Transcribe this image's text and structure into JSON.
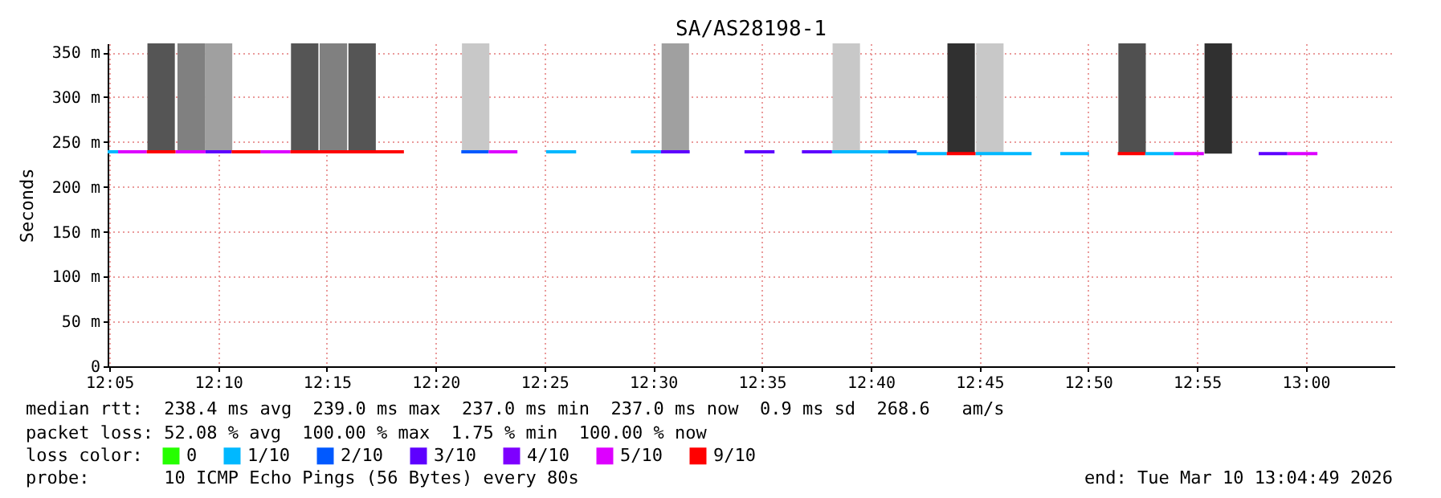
{
  "chart_data": {
    "type": "line",
    "title": "SA/AS28198-1",
    "ylabel": "Seconds",
    "legend_title": "loss color:",
    "legend": "bottom left",
    "grid": true,
    "xlim": [
      12.082,
      13.068
    ],
    "xticks": [
      {
        "value": 12.0833,
        "label": "12:05"
      },
      {
        "value": 12.1667,
        "label": "12:10"
      },
      {
        "value": 12.25,
        "label": "12:15"
      },
      {
        "value": 12.3333,
        "label": "12:20"
      },
      {
        "value": 12.4167,
        "label": "12:25"
      },
      {
        "value": 12.5,
        "label": "12:30"
      },
      {
        "value": 12.5833,
        "label": "12:35"
      },
      {
        "value": 12.6667,
        "label": "12:40"
      },
      {
        "value": 12.75,
        "label": "12:45"
      },
      {
        "value": 12.8333,
        "label": "12:50"
      },
      {
        "value": 12.9167,
        "label": "12:55"
      },
      {
        "value": 13,
        "label": "13:00"
      }
    ],
    "ylim": [
      0,
      360
    ],
    "yticks": [
      0,
      {
        "value": 50,
        "label": "50 m"
      },
      {
        "value": 100,
        "label": "100 m"
      },
      {
        "value": 150,
        "label": "150 m"
      },
      {
        "value": 200,
        "label": "200 m"
      },
      {
        "value": 250,
        "label": "250 m"
      },
      {
        "value": 300,
        "label": "300 m"
      },
      {
        "value": 350,
        "label": "350 m"
      }
    ],
    "series": [
      {
        "name": "0",
        "color": "#26ff00"
      },
      {
        "name": "1/10",
        "color": "#00b8ff",
        "x": [
          12.082,
          12.09,
          null,
          12.418,
          12.441,
          null,
          12.483,
          12.506,
          null,
          12.637,
          12.68,
          null,
          12.702,
          12.725,
          null,
          12.747,
          12.79,
          null,
          12.812,
          12.834,
          null,
          12.877,
          12.899
        ],
        "values": [
          239,
          239,
          null,
          239,
          239,
          null,
          239,
          239,
          null,
          239,
          239,
          null,
          237,
          237,
          null,
          237,
          237,
          null,
          237,
          237,
          null,
          237,
          237
        ]
      },
      {
        "name": "2/10",
        "color": "#0059ff",
        "x": [
          12.353,
          12.374,
          null,
          12.68,
          12.702
        ],
        "values": [
          239,
          239,
          null,
          239,
          239
        ]
      },
      {
        "name": "3/10",
        "color": "#5e00ff",
        "x": [
          12.157,
          12.177,
          null,
          12.506,
          12.528,
          null,
          12.57,
          12.593,
          null,
          12.614,
          12.637,
          null,
          12.964,
          12.986
        ],
        "values": [
          239,
          239,
          null,
          239,
          239,
          null,
          239,
          239,
          null,
          239,
          239,
          null,
          237,
          237
        ]
      },
      {
        "name": "4/10",
        "color": "#7e00ff"
      },
      {
        "name": "5/10",
        "color": "#dd00ff",
        "x": [
          12.09,
          12.112,
          null,
          12.134,
          12.157,
          null,
          12.199,
          12.222,
          null,
          12.374,
          12.396,
          null,
          12.899,
          12.922,
          null,
          12.986,
          13.009
        ],
        "values": [
          239,
          239,
          null,
          239,
          239,
          null,
          239,
          239,
          null,
          239,
          239,
          null,
          237,
          237,
          null,
          237,
          237
        ]
      },
      {
        "name": "9/10",
        "color": "#ff0000",
        "x": [
          12.112,
          12.134,
          null,
          12.177,
          12.199,
          null,
          12.222,
          12.309,
          null,
          12.725,
          12.747,
          null,
          12.856,
          12.877
        ],
        "values": [
          239,
          239,
          null,
          239,
          239,
          null,
          239,
          239,
          null,
          237,
          237,
          null,
          237,
          237
        ]
      },
      {
        "type": "bar",
        "x": [
          12.123,
          12.146,
          12.167,
          12.233,
          12.255,
          12.277,
          12.364,
          12.517,
          12.648,
          12.736,
          12.758,
          12.867,
          12.933
        ],
        "base": [
          239,
          239,
          239,
          239,
          239,
          239,
          239,
          239,
          239,
          237,
          237,
          237,
          237
        ],
        "values": [
          121,
          121,
          121,
          121,
          121,
          121,
          121,
          121,
          121,
          123,
          123,
          123,
          123
        ],
        "colors": [
          "#555555",
          "#808080",
          "#a0a0a0",
          "#555555",
          "#808080",
          "#555555",
          "#c8c8c8",
          "#a0a0a0",
          "#c8c8c8",
          "#303030",
          "#c8c8c8",
          "#505050",
          "#303030"
        ]
      }
    ],
    "annotations": [
      "median rtt:  238.4 ms avg  239.0 ms max  237.0 ms min  237.0 ms now  0.9 ms sd  268.6   am/s",
      "packet loss: 52.08 % avg  100.00 % max  1.75 % min  100.00 % now",
      "probe:       10 ICMP Echo Pings (56 Bytes) every 80s",
      "end: Tue Mar 10 13:04:49 2026"
    ]
  }
}
